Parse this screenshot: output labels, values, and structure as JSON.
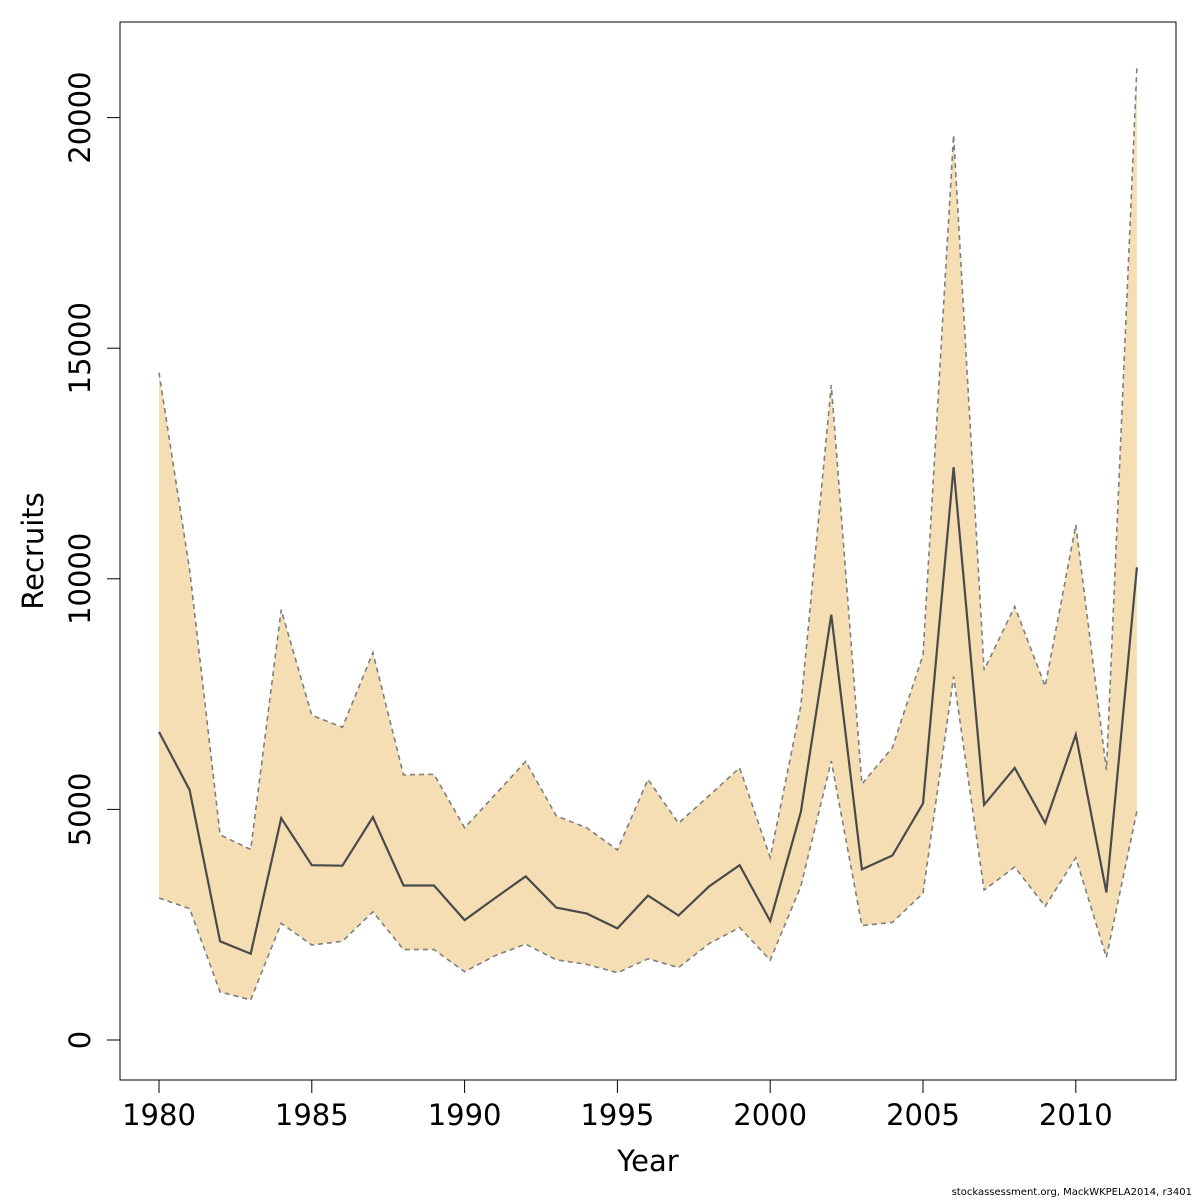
{
  "chart_data": {
    "type": "area",
    "title": "",
    "xlabel": "Year",
    "ylabel": "Recruits",
    "xlim": [
      1978.8,
      1213.0
    ],
    "ylim": [
      -800,
      22000
    ],
    "x_ticks": [
      1980,
      1985,
      1990,
      1995,
      2000,
      2005,
      2010
    ],
    "y_ticks": [
      0,
      5000,
      10000,
      15000,
      20000
    ],
    "x": [
      1980,
      1981,
      1982,
      1983,
      1984,
      1985,
      1986,
      1987,
      1988,
      1989,
      1990,
      1991,
      1992,
      1993,
      1994,
      1995,
      1996,
      1997,
      1998,
      1999,
      2000,
      2001,
      2002,
      2003,
      2004,
      2005,
      2006,
      2007,
      2008,
      2009,
      2010,
      2011,
      2012
    ],
    "series": [
      {
        "name": "",
        "values": [
          6680,
          5420,
          2140,
          1870,
          4810,
          3790,
          3780,
          4830,
          3350,
          3350,
          2600,
          3080,
          3550,
          2870,
          2740,
          2420,
          3130,
          2700,
          3330,
          3790,
          2580,
          4940,
          9220,
          3700,
          4000,
          5130,
          12420,
          5100,
          5900,
          4700,
          6620,
          3200,
          10250
        ]
      },
      {
        "name": "",
        "values": [
          14470,
          10200,
          4450,
          4130,
          9330,
          7040,
          6780,
          8400,
          5750,
          5760,
          4600,
          5320,
          6040,
          4860,
          4600,
          4120,
          5650,
          4700,
          5300,
          5900,
          3960,
          7240,
          14200,
          5550,
          6340,
          8350,
          19620,
          8020,
          9400,
          7670,
          11170,
          5850,
          21100
        ]
      },
      {
        "name": "",
        "values": [
          3080,
          2850,
          1040,
          870,
          2530,
          2060,
          2140,
          2780,
          1960,
          1960,
          1480,
          1830,
          2080,
          1740,
          1640,
          1460,
          1760,
          1570,
          2090,
          2440,
          1730,
          3330,
          6050,
          2480,
          2550,
          3180,
          7880,
          3250,
          3750,
          2900,
          3950,
          1790,
          4960
        ]
      }
    ],
    "band_color": "#f5deb3",
    "line_color": "#4a4a4a",
    "band_edge_color": "#7f7f7f",
    "grid": false,
    "legend": "none"
  },
  "footer": {
    "text": "stockassessment.org, MackWKPELA2014, r3401"
  }
}
